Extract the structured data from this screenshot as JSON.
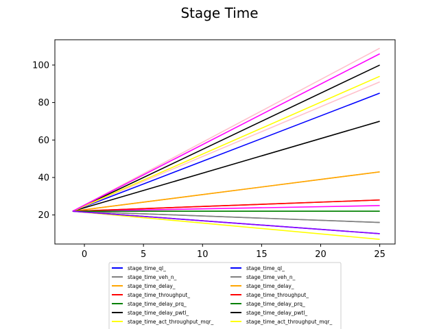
{
  "chart_data": {
    "type": "line",
    "title": "Stage Time",
    "xlabel": "",
    "ylabel": "",
    "xlim": [
      -2.5,
      26.3
    ],
    "ylim": [
      4.5,
      113.5
    ],
    "xticks": [
      0,
      5,
      10,
      15,
      20,
      25
    ],
    "yticks": [
      20,
      40,
      60,
      80,
      100
    ],
    "grid": false,
    "legend_position": "lower-center",
    "series": [
      {
        "name": "stage_time_ql_",
        "color": "#0000ff",
        "x": [
          -1,
          25
        ],
        "y": [
          22,
          85
        ]
      },
      {
        "name": "stage_time_veh_n_",
        "color": "#808080",
        "x": [
          -1,
          25
        ],
        "y": [
          22,
          16
        ]
      },
      {
        "name": "stage_time_delay_",
        "color": "#ffa500",
        "x": [
          -1,
          25
        ],
        "y": [
          22,
          43
        ]
      },
      {
        "name": "stage_time_throughput_",
        "color": "#ff0000",
        "x": [
          -1,
          25
        ],
        "y": [
          22,
          28
        ]
      },
      {
        "name": "stage_time_delay_prq_",
        "color": "#008000",
        "x": [
          -1,
          25
        ],
        "y": [
          22,
          22
        ]
      },
      {
        "name": "stage_time_delay_pwtl_",
        "color": "#000000",
        "x": [
          -1,
          25
        ],
        "y": [
          22,
          70
        ]
      },
      {
        "name": "stage_time_act_throughput_mqr_",
        "color": "#ffff00",
        "x": [
          -1,
          25
        ],
        "y": [
          22,
          7
        ]
      },
      {
        "name": "",
        "color": "#ffc0cb",
        "x": [
          -1,
          25
        ],
        "y": [
          22,
          91
        ]
      },
      {
        "name": "",
        "color": "#ff00ff",
        "x": [
          -1,
          25
        ],
        "y": [
          22,
          25
        ]
      },
      {
        "name": "stage_time_ql_",
        "color": "#0000ff",
        "x": [
          -1,
          25
        ],
        "y": [
          22,
          10
        ]
      },
      {
        "name": "stage_time_veh_n_",
        "color": "#808080",
        "x": [
          -1,
          25
        ],
        "y": [
          22,
          16
        ]
      },
      {
        "name": "stage_time_delay_",
        "color": "#ffa500",
        "x": [
          -1,
          25
        ],
        "y": [
          22,
          43
        ]
      },
      {
        "name": "stage_time_throughput_",
        "color": "#ff0000",
        "x": [
          -1,
          25
        ],
        "y": [
          22,
          28
        ]
      },
      {
        "name": "stage_time_delay_prq_",
        "color": "#008000",
        "x": [
          -1,
          25
        ],
        "y": [
          22,
          22
        ]
      },
      {
        "name": "stage_time_delay_pwtl_",
        "color": "#000000",
        "x": [
          -1,
          25
        ],
        "y": [
          22,
          100
        ]
      },
      {
        "name": "stage_time_act_throughput_mqr_",
        "color": "#ffff00",
        "x": [
          -1,
          25
        ],
        "y": [
          22,
          94
        ]
      },
      {
        "name": "",
        "color": "#ffc0cb",
        "x": [
          -1,
          25
        ],
        "y": [
          22,
          109
        ]
      },
      {
        "name": "",
        "color": "#ff00ff",
        "x": [
          -1,
          25
        ],
        "y": [
          22,
          106
        ]
      },
      {
        "name": "",
        "color": "#8b00ff",
        "x": [
          -1,
          25
        ],
        "y": [
          22,
          10
        ]
      }
    ],
    "legend_columns": [
      [
        {
          "label": "stage_time_ql_",
          "color": "#0000ff"
        },
        {
          "label": "stage_time_veh_n_",
          "color": "#808080"
        },
        {
          "label": "stage_time_delay_",
          "color": "#ffa500"
        },
        {
          "label": "stage_time_throughput_",
          "color": "#ff0000"
        },
        {
          "label": "stage_time_delay_prq_",
          "color": "#008000"
        },
        {
          "label": "stage_time_delay_pwtl_",
          "color": "#000000"
        },
        {
          "label": "stage_time_act_throughput_mqr_",
          "color": "#ffff00"
        }
      ],
      [
        {
          "label": "stage_time_ql_",
          "color": "#0000ff"
        },
        {
          "label": "stage_time_veh_n_",
          "color": "#808080"
        },
        {
          "label": "stage_time_delay_",
          "color": "#ffa500"
        },
        {
          "label": "stage_time_throughput_",
          "color": "#ff0000"
        },
        {
          "label": "stage_time_delay_prq_",
          "color": "#008000"
        },
        {
          "label": "stage_time_delay_pwtl_",
          "color": "#000000"
        },
        {
          "label": "stage_time_act_throughput_mqr_",
          "color": "#ffff00"
        }
      ]
    ]
  }
}
